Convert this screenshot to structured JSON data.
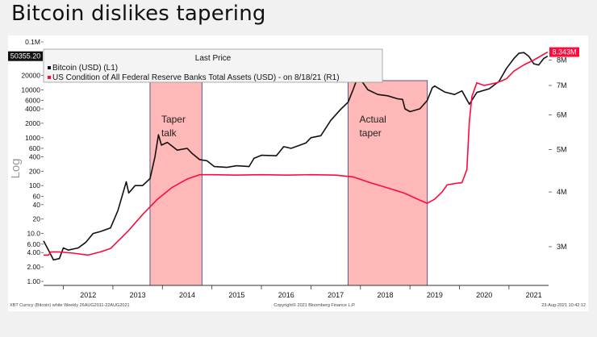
{
  "page": {
    "title": "Bitcoin dislikes tapering"
  },
  "chart_data": {
    "type": "line",
    "scale": "log",
    "ylabel": "Log",
    "legend": {
      "title": "Last Price",
      "entries": [
        "Bitcoin (USD)  (L1)",
        "US Condition of All Federal Reserve Banks Total Assets (USD)  -  on 8/18/21  (R1)"
      ],
      "placement": "top-left"
    },
    "left_axis": {
      "labels": [
        "0.1M",
        "20000",
        "10000",
        "6000",
        "4000",
        "2000",
        "1000",
        "600",
        "400",
        "200",
        "100",
        "60",
        "40",
        "20",
        "10.0",
        "6.00",
        "4.00",
        "2.00",
        "1.00"
      ],
      "values": [
        100000,
        20000,
        10000,
        6000,
        4000,
        2000,
        1000,
        600,
        400,
        200,
        100,
        60,
        40,
        20,
        10,
        6,
        4,
        2,
        1
      ],
      "range": [
        1,
        100000
      ],
      "last_value_label": "50355.20"
    },
    "right_axis": {
      "labels": [
        "8M",
        "7M",
        "6M",
        "5M",
        "4M",
        "3M"
      ],
      "values": [
        8000000,
        7000000,
        6000000,
        5000000,
        4000000,
        3000000
      ],
      "range": [
        2500000,
        8800000
      ],
      "last_value_label": "8.343M"
    },
    "x_axis": {
      "labels": [
        "2012",
        "2013",
        "2014",
        "2015",
        "2016",
        "2017",
        "2018",
        "2019",
        "2020",
        "2021"
      ],
      "years": [
        2012,
        2013,
        2014,
        2015,
        2016,
        2017,
        2018,
        2019,
        2020,
        2021
      ],
      "range": [
        2011.6,
        2021.8
      ]
    },
    "shaded_regions": [
      {
        "label_lines": [
          "Taper",
          "talk"
        ],
        "start": 2013.75,
        "end": 2014.8
      },
      {
        "label_lines": [
          "Actual",
          "taper"
        ],
        "start": 2017.75,
        "end": 2019.35
      }
    ],
    "series": [
      {
        "name": "Bitcoin (USD)",
        "axis": "left",
        "color": "#111111",
        "points": [
          [
            2011.6,
            7
          ],
          [
            2011.7,
            4.5
          ],
          [
            2011.8,
            2.8
          ],
          [
            2011.92,
            3
          ],
          [
            2012.0,
            5
          ],
          [
            2012.1,
            4.5
          ],
          [
            2012.3,
            5
          ],
          [
            2012.45,
            6.5
          ],
          [
            2012.6,
            10
          ],
          [
            2012.75,
            11
          ],
          [
            2012.95,
            13
          ],
          [
            2013.1,
            30
          ],
          [
            2013.27,
            120
          ],
          [
            2013.32,
            70
          ],
          [
            2013.45,
            100
          ],
          [
            2013.6,
            100
          ],
          [
            2013.75,
            140
          ],
          [
            2013.85,
            400
          ],
          [
            2013.92,
            1150
          ],
          [
            2013.98,
            700
          ],
          [
            2014.1,
            800
          ],
          [
            2014.3,
            550
          ],
          [
            2014.5,
            600
          ],
          [
            2014.6,
            470
          ],
          [
            2014.75,
            350
          ],
          [
            2014.9,
            330
          ],
          [
            2015.05,
            250
          ],
          [
            2015.3,
            240
          ],
          [
            2015.5,
            260
          ],
          [
            2015.75,
            250
          ],
          [
            2015.85,
            370
          ],
          [
            2016.0,
            430
          ],
          [
            2016.3,
            420
          ],
          [
            2016.45,
            650
          ],
          [
            2016.6,
            600
          ],
          [
            2016.9,
            780
          ],
          [
            2017.0,
            1000
          ],
          [
            2017.2,
            1100
          ],
          [
            2017.4,
            2300
          ],
          [
            2017.6,
            3900
          ],
          [
            2017.75,
            5500
          ],
          [
            2017.85,
            10000
          ],
          [
            2017.95,
            19000
          ],
          [
            2018.05,
            14000
          ],
          [
            2018.15,
            10000
          ],
          [
            2018.35,
            8000
          ],
          [
            2018.55,
            7500
          ],
          [
            2018.75,
            6500
          ],
          [
            2018.85,
            6300
          ],
          [
            2018.9,
            4000
          ],
          [
            2019.0,
            3500
          ],
          [
            2019.2,
            4000
          ],
          [
            2019.35,
            6000
          ],
          [
            2019.45,
            11000
          ],
          [
            2019.5,
            12000
          ],
          [
            2019.7,
            9000
          ],
          [
            2019.9,
            8000
          ],
          [
            2020.05,
            9500
          ],
          [
            2020.2,
            5000
          ],
          [
            2020.35,
            8800
          ],
          [
            2020.6,
            10500
          ],
          [
            2020.8,
            15000
          ],
          [
            2020.95,
            28000
          ],
          [
            2021.1,
            45000
          ],
          [
            2021.2,
            58000
          ],
          [
            2021.3,
            60000
          ],
          [
            2021.4,
            50000
          ],
          [
            2021.5,
            35000
          ],
          [
            2021.6,
            33000
          ],
          [
            2021.7,
            45000
          ],
          [
            2021.78,
            50355
          ]
        ]
      },
      {
        "name": "US Condition of All Federal Reserve Banks Total Assets (USD)",
        "axis": "right",
        "color": "#ff0a3b",
        "points": [
          [
            2011.6,
            2.87
          ],
          [
            2011.7,
            2.87
          ],
          [
            2011.75,
            2.92
          ],
          [
            2011.9,
            2.92
          ],
          [
            2012.2,
            2.9
          ],
          [
            2012.5,
            2.87
          ],
          [
            2012.75,
            2.92
          ],
          [
            2012.95,
            2.97
          ],
          [
            2013.3,
            3.25
          ],
          [
            2013.6,
            3.55
          ],
          [
            2013.9,
            3.85
          ],
          [
            2014.2,
            4.1
          ],
          [
            2014.5,
            4.28
          ],
          [
            2014.75,
            4.38
          ],
          [
            2015.0,
            4.38
          ],
          [
            2015.5,
            4.37
          ],
          [
            2016.0,
            4.38
          ],
          [
            2016.5,
            4.37
          ],
          [
            2017.0,
            4.38
          ],
          [
            2017.5,
            4.37
          ],
          [
            2017.85,
            4.33
          ],
          [
            2018.2,
            4.2
          ],
          [
            2018.6,
            4.07
          ],
          [
            2018.9,
            3.97
          ],
          [
            2019.2,
            3.83
          ],
          [
            2019.35,
            3.77
          ],
          [
            2019.5,
            3.85
          ],
          [
            2019.65,
            4.0
          ],
          [
            2019.75,
            4.15
          ],
          [
            2019.9,
            4.18
          ],
          [
            2020.05,
            4.2
          ],
          [
            2020.15,
            4.5
          ],
          [
            2020.2,
            5.8
          ],
          [
            2020.25,
            6.6
          ],
          [
            2020.35,
            7.1
          ],
          [
            2020.5,
            7.0
          ],
          [
            2020.75,
            7.1
          ],
          [
            2020.95,
            7.25
          ],
          [
            2021.1,
            7.55
          ],
          [
            2021.3,
            7.8
          ],
          [
            2021.5,
            8.0
          ],
          [
            2021.78,
            8.343
          ]
        ]
      }
    ],
    "colors": {
      "shade_fill": "#ffb8b8",
      "shade_stroke": "#5a5a8a",
      "btc_line": "#111111",
      "fed_line": "#ff0a3b",
      "last_price_box": "#111111",
      "fed_price_box": "#ff0a3b"
    },
    "footer": {
      "left": "XBT Curncy (Bitcoin) white  Weekly 26AUG2011-22AUG2021",
      "center": "Copyright© 2021 Bloomberg Finance L.P.",
      "right": "23-Aug-2021 10:42:12"
    }
  }
}
